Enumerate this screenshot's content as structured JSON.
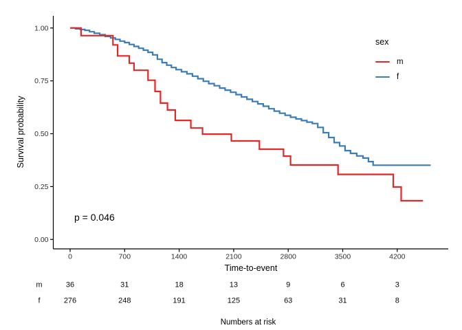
{
  "chart_data": {
    "type": "line",
    "subtype": "kaplan-meier-step-curves",
    "title": "",
    "xlabel": "Time-to-event",
    "ylabel": "Survival probability",
    "x_ticks": [
      0,
      700,
      1400,
      2100,
      2800,
      3500,
      4200
    ],
    "x_tick_labels": [
      "0",
      "700",
      "1400",
      "2100",
      "2800",
      "3500",
      "4200"
    ],
    "y_ticks": [
      0,
      0.25,
      0.5,
      0.75,
      1
    ],
    "y_tick_labels": [
      "0.00",
      "0.25",
      "0.50",
      "0.75",
      "1.00"
    ],
    "xlim": [
      -216,
      4855
    ],
    "ylim": [
      0,
      1.04
    ],
    "grid": "off",
    "axis_color": "#000000",
    "annotation": {
      "pvalue": "p = 0.046"
    },
    "legend": {
      "title": "sex",
      "position": "right-top",
      "entries": [
        {
          "label": "m",
          "color": "#E22827"
        },
        {
          "label": "f",
          "color": "#3A7CB8"
        }
      ]
    },
    "series": [
      {
        "name": "f",
        "color": "#3A7CB8",
        "points": [
          [
            0,
            1.0
          ],
          [
            70,
            0.996
          ],
          [
            130,
            0.993
          ],
          [
            190,
            0.989
          ],
          [
            250,
            0.982
          ],
          [
            310,
            0.975
          ],
          [
            380,
            0.968
          ],
          [
            450,
            0.96
          ],
          [
            520,
            0.953
          ],
          [
            580,
            0.946
          ],
          [
            640,
            0.938
          ],
          [
            700,
            0.931
          ],
          [
            760,
            0.922
          ],
          [
            820,
            0.913
          ],
          [
            880,
            0.904
          ],
          [
            940,
            0.895
          ],
          [
            1000,
            0.885
          ],
          [
            1060,
            0.873
          ],
          [
            1120,
            0.852
          ],
          [
            1180,
            0.836
          ],
          [
            1240,
            0.824
          ],
          [
            1300,
            0.813
          ],
          [
            1360,
            0.803
          ],
          [
            1430,
            0.793
          ],
          [
            1500,
            0.783
          ],
          [
            1570,
            0.772
          ],
          [
            1640,
            0.76
          ],
          [
            1710,
            0.748
          ],
          [
            1780,
            0.737
          ],
          [
            1850,
            0.727
          ],
          [
            1920,
            0.716
          ],
          [
            1990,
            0.706
          ],
          [
            2060,
            0.696
          ],
          [
            2130,
            0.685
          ],
          [
            2200,
            0.674
          ],
          [
            2270,
            0.663
          ],
          [
            2340,
            0.652
          ],
          [
            2410,
            0.641
          ],
          [
            2480,
            0.63
          ],
          [
            2550,
            0.618
          ],
          [
            2620,
            0.607
          ],
          [
            2690,
            0.597
          ],
          [
            2760,
            0.587
          ],
          [
            2830,
            0.578
          ],
          [
            2900,
            0.57
          ],
          [
            2970,
            0.562
          ],
          [
            3040,
            0.555
          ],
          [
            3110,
            0.548
          ],
          [
            3180,
            0.53
          ],
          [
            3250,
            0.505
          ],
          [
            3320,
            0.482
          ],
          [
            3390,
            0.458
          ],
          [
            3460,
            0.442
          ],
          [
            3530,
            0.42
          ],
          [
            3600,
            0.407
          ],
          [
            3680,
            0.395
          ],
          [
            3760,
            0.385
          ],
          [
            3830,
            0.368
          ],
          [
            3890,
            0.351
          ],
          [
            4630,
            0.351
          ]
        ]
      },
      {
        "name": "m",
        "color": "#E22827",
        "points": [
          [
            0,
            1.0
          ],
          [
            140,
            0.964
          ],
          [
            550,
            0.92
          ],
          [
            610,
            0.868
          ],
          [
            760,
            0.834
          ],
          [
            820,
            0.8
          ],
          [
            1000,
            0.753
          ],
          [
            1090,
            0.7
          ],
          [
            1160,
            0.645
          ],
          [
            1250,
            0.612
          ],
          [
            1350,
            0.563
          ],
          [
            1550,
            0.527
          ],
          [
            1700,
            0.498
          ],
          [
            2070,
            0.466
          ],
          [
            2430,
            0.427
          ],
          [
            2740,
            0.394
          ],
          [
            2830,
            0.352
          ],
          [
            3440,
            0.308
          ],
          [
            4150,
            0.248
          ],
          [
            4250,
            0.183
          ],
          [
            4530,
            0.183
          ]
        ]
      }
    ],
    "risk_table": {
      "caption": "Numbers at risk",
      "time_points": [
        0,
        700,
        1400,
        2100,
        2800,
        3500,
        4200
      ],
      "rows": [
        {
          "label": "m",
          "counts": [
            "36",
            "31",
            "18",
            "13",
            "9",
            "6",
            "3"
          ]
        },
        {
          "label": "f",
          "counts": [
            "276",
            "248",
            "191",
            "125",
            "63",
            "31",
            "8"
          ]
        }
      ]
    }
  }
}
